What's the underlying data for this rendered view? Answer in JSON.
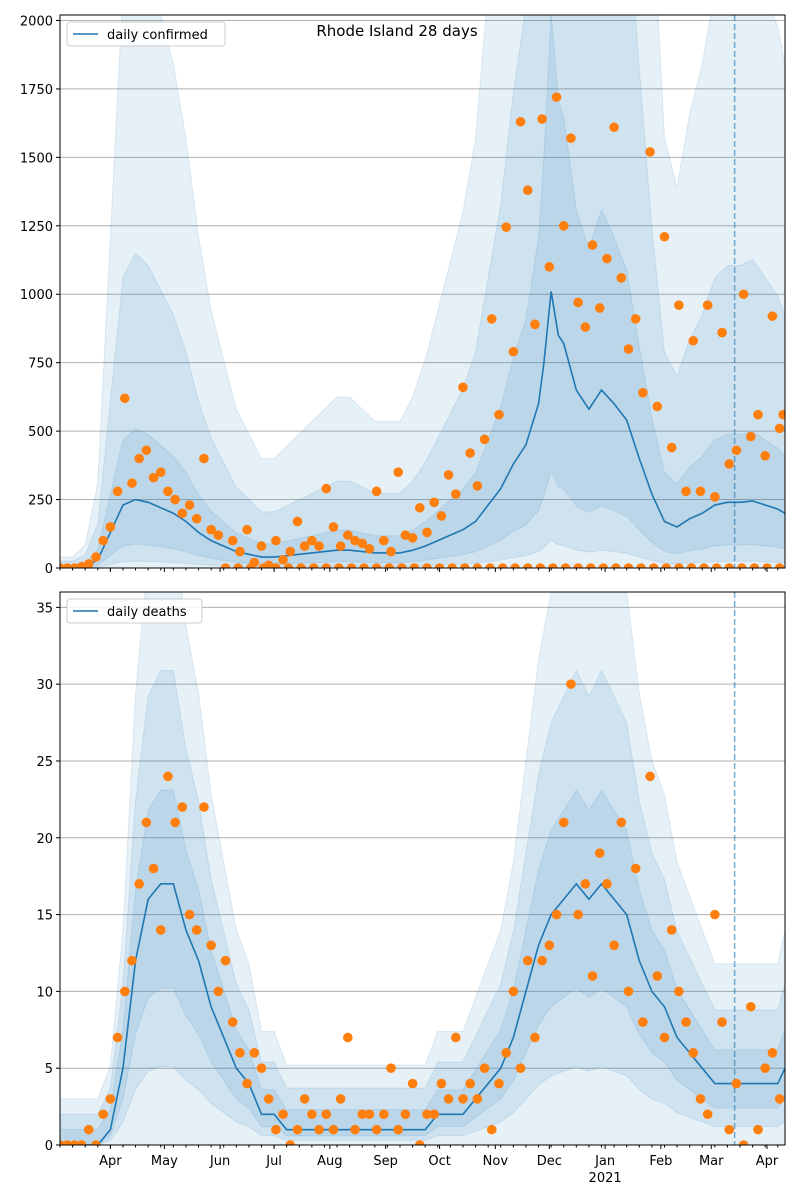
{
  "chart_data": [
    {
      "type": "scatter+line",
      "title": "Rhode Island 28 days",
      "legend": "daily confirmed",
      "legend_placement": "top-left",
      "ylim": [
        0,
        2020
      ],
      "yticks": [
        0,
        250,
        500,
        750,
        1000,
        1250,
        1500,
        1750,
        2000
      ],
      "grid": "horizontal",
      "line_days": [
        0,
        7,
        14,
        21,
        28,
        35,
        42,
        49,
        56,
        63,
        70,
        77,
        84,
        91,
        98,
        105,
        112,
        119,
        126,
        133,
        140,
        147,
        154,
        161,
        168,
        175,
        182,
        189,
        196,
        203,
        210,
        217,
        224,
        231,
        238,
        245,
        252,
        259,
        266,
        269,
        273,
        277,
        280,
        287,
        294,
        301,
        308,
        315,
        322,
        329,
        336,
        343,
        350,
        357,
        364,
        371,
        378,
        385,
        392,
        399,
        403
      ],
      "line_values": [
        0,
        0,
        5,
        30,
        130,
        230,
        250,
        240,
        220,
        200,
        170,
        130,
        100,
        80,
        60,
        50,
        40,
        40,
        45,
        50,
        55,
        60,
        65,
        65,
        60,
        55,
        55,
        55,
        65,
        80,
        100,
        120,
        140,
        170,
        230,
        290,
        380,
        450,
        600,
        750,
        1010,
        850,
        820,
        650,
        580,
        650,
        600,
        540,
        400,
        270,
        170,
        150,
        180,
        200,
        230,
        240,
        240,
        245,
        230,
        215,
        200
      ],
      "band_factors": [
        [
          0.0,
          9.0,
          40
        ],
        [
          0.1,
          4.5,
          25
        ],
        [
          0.35,
          2.0,
          8
        ]
      ],
      "points": [
        [
          0,
          0
        ],
        [
          4,
          0
        ],
        [
          8,
          0
        ],
        [
          12,
          5
        ],
        [
          16,
          15
        ],
        [
          20,
          40
        ],
        [
          24,
          100
        ],
        [
          28,
          150
        ],
        [
          32,
          280
        ],
        [
          36,
          620
        ],
        [
          40,
          310
        ],
        [
          44,
          400
        ],
        [
          48,
          430
        ],
        [
          52,
          330
        ],
        [
          56,
          350
        ],
        [
          60,
          280
        ],
        [
          64,
          250
        ],
        [
          68,
          200
        ],
        [
          72,
          230
        ],
        [
          76,
          180
        ],
        [
          80,
          400
        ],
        [
          84,
          140
        ],
        [
          88,
          120
        ],
        [
          92,
          0
        ],
        [
          96,
          100
        ],
        [
          100,
          60
        ],
        [
          104,
          140
        ],
        [
          108,
          20
        ],
        [
          112,
          80
        ],
        [
          116,
          10
        ],
        [
          120,
          100
        ],
        [
          124,
          30
        ],
        [
          128,
          60
        ],
        [
          132,
          170
        ],
        [
          136,
          80
        ],
        [
          140,
          100
        ],
        [
          144,
          80
        ],
        [
          148,
          290
        ],
        [
          152,
          150
        ],
        [
          156,
          80
        ],
        [
          160,
          120
        ],
        [
          164,
          100
        ],
        [
          168,
          90
        ],
        [
          172,
          70
        ],
        [
          176,
          280
        ],
        [
          180,
          100
        ],
        [
          184,
          60
        ],
        [
          188,
          350
        ],
        [
          192,
          120
        ],
        [
          196,
          110
        ],
        [
          200,
          220
        ],
        [
          204,
          130
        ],
        [
          208,
          240
        ],
        [
          212,
          190
        ],
        [
          216,
          340
        ],
        [
          220,
          270
        ],
        [
          224,
          660
        ],
        [
          228,
          420
        ],
        [
          232,
          300
        ],
        [
          236,
          470
        ],
        [
          240,
          910
        ],
        [
          244,
          560
        ],
        [
          248,
          1245
        ],
        [
          252,
          790
        ],
        [
          256,
          1630
        ],
        [
          260,
          1380
        ],
        [
          264,
          890
        ],
        [
          268,
          1640
        ],
        [
          272,
          1100
        ],
        [
          276,
          1720
        ],
        [
          280,
          1250
        ],
        [
          284,
          1570
        ],
        [
          288,
          970
        ],
        [
          292,
          880
        ],
        [
          296,
          1180
        ],
        [
          300,
          950
        ],
        [
          304,
          1130
        ],
        [
          308,
          1610
        ],
        [
          312,
          1060
        ],
        [
          316,
          800
        ],
        [
          320,
          910
        ],
        [
          324,
          640
        ],
        [
          328,
          1520
        ],
        [
          332,
          590
        ],
        [
          336,
          1210
        ],
        [
          340,
          440
        ],
        [
          344,
          960
        ],
        [
          348,
          280
        ],
        [
          352,
          830
        ],
        [
          356,
          280
        ],
        [
          360,
          960
        ],
        [
          364,
          260
        ],
        [
          368,
          860
        ],
        [
          372,
          380
        ],
        [
          376,
          430
        ],
        [
          380,
          1000
        ],
        [
          384,
          480
        ],
        [
          388,
          560
        ],
        [
          392,
          410
        ],
        [
          396,
          920
        ],
        [
          400,
          510
        ],
        [
          402,
          560
        ],
        [
          99,
          0
        ],
        [
          106,
          0
        ],
        [
          113,
          0
        ],
        [
          120,
          0
        ],
        [
          127,
          0
        ],
        [
          134,
          0
        ],
        [
          141,
          0
        ],
        [
          148,
          0
        ],
        [
          155,
          0
        ],
        [
          162,
          0
        ],
        [
          169,
          0
        ],
        [
          176,
          0
        ],
        [
          183,
          0
        ],
        [
          190,
          0
        ],
        [
          197,
          0
        ],
        [
          204,
          0
        ],
        [
          211,
          0
        ],
        [
          218,
          0
        ],
        [
          225,
          0
        ],
        [
          232,
          0
        ],
        [
          239,
          0
        ],
        [
          246,
          0
        ],
        [
          253,
          0
        ],
        [
          260,
          0
        ],
        [
          267,
          0
        ],
        [
          274,
          0
        ],
        [
          281,
          0
        ],
        [
          288,
          0
        ],
        [
          295,
          0
        ],
        [
          302,
          0
        ],
        [
          309,
          0
        ],
        [
          316,
          0
        ],
        [
          323,
          0
        ],
        [
          330,
          0
        ],
        [
          337,
          0
        ],
        [
          344,
          0
        ],
        [
          351,
          0
        ],
        [
          358,
          0
        ],
        [
          365,
          0
        ],
        [
          372,
          0
        ],
        [
          379,
          0
        ],
        [
          386,
          0
        ],
        [
          393,
          0
        ],
        [
          400,
          0
        ]
      ]
    },
    {
      "type": "scatter+line",
      "legend": "daily deaths",
      "legend_placement": "top-left",
      "ylim": [
        0,
        36
      ],
      "yticks": [
        0,
        5,
        10,
        15,
        20,
        25,
        30,
        35
      ],
      "grid": "horizontal",
      "line_days": [
        0,
        7,
        14,
        21,
        28,
        35,
        42,
        49,
        56,
        63,
        70,
        77,
        84,
        91,
        98,
        105,
        112,
        119,
        126,
        133,
        140,
        147,
        154,
        161,
        168,
        175,
        182,
        189,
        196,
        203,
        210,
        217,
        224,
        231,
        238,
        245,
        252,
        259,
        266,
        273,
        280,
        287,
        294,
        301,
        308,
        315,
        322,
        329,
        336,
        343,
        350,
        357,
        364,
        371,
        378,
        385,
        392,
        399,
        403
      ],
      "line_values": [
        0,
        0,
        0,
        0,
        1,
        5,
        12,
        16,
        17,
        17,
        14,
        12,
        9,
        7,
        5,
        4,
        2,
        2,
        1,
        1,
        1,
        1,
        1,
        1,
        1,
        1,
        1,
        1,
        1,
        1,
        2,
        2,
        2,
        3,
        4,
        5,
        7,
        10,
        13,
        15,
        16,
        17,
        16,
        17,
        16,
        15,
        12,
        10,
        9,
        7,
        6,
        5,
        4,
        4,
        4,
        4,
        4,
        4,
        5
      ],
      "band_factors": [
        [
          0.0,
          2.2,
          3
        ],
        [
          0.3,
          1.7,
          2
        ],
        [
          0.6,
          1.3,
          1
        ]
      ],
      "points": [
        [
          0,
          0
        ],
        [
          4,
          0
        ],
        [
          8,
          0
        ],
        [
          12,
          0
        ],
        [
          16,
          1
        ],
        [
          20,
          0
        ],
        [
          24,
          2
        ],
        [
          28,
          3
        ],
        [
          32,
          7
        ],
        [
          36,
          10
        ],
        [
          40,
          12
        ],
        [
          44,
          17
        ],
        [
          48,
          21
        ],
        [
          52,
          18
        ],
        [
          56,
          14
        ],
        [
          60,
          24
        ],
        [
          64,
          21
        ],
        [
          68,
          22
        ],
        [
          72,
          15
        ],
        [
          76,
          14
        ],
        [
          80,
          22
        ],
        [
          84,
          13
        ],
        [
          88,
          10
        ],
        [
          92,
          12
        ],
        [
          96,
          8
        ],
        [
          100,
          6
        ],
        [
          104,
          4
        ],
        [
          108,
          6
        ],
        [
          112,
          5
        ],
        [
          116,
          3
        ],
        [
          120,
          1
        ],
        [
          124,
          2
        ],
        [
          128,
          0
        ],
        [
          132,
          1
        ],
        [
          136,
          3
        ],
        [
          140,
          2
        ],
        [
          144,
          1
        ],
        [
          148,
          2
        ],
        [
          152,
          1
        ],
        [
          156,
          3
        ],
        [
          160,
          7
        ],
        [
          164,
          1
        ],
        [
          168,
          2
        ],
        [
          172,
          2
        ],
        [
          176,
          1
        ],
        [
          180,
          2
        ],
        [
          184,
          5
        ],
        [
          188,
          1
        ],
        [
          192,
          2
        ],
        [
          196,
          4
        ],
        [
          200,
          0
        ],
        [
          204,
          2
        ],
        [
          208,
          2
        ],
        [
          212,
          4
        ],
        [
          216,
          3
        ],
        [
          220,
          7
        ],
        [
          224,
          3
        ],
        [
          228,
          4
        ],
        [
          232,
          3
        ],
        [
          236,
          5
        ],
        [
          240,
          1
        ],
        [
          244,
          4
        ],
        [
          248,
          6
        ],
        [
          252,
          10
        ],
        [
          256,
          5
        ],
        [
          260,
          12
        ],
        [
          264,
          7
        ],
        [
          268,
          12
        ],
        [
          272,
          13
        ],
        [
          276,
          15
        ],
        [
          280,
          21
        ],
        [
          284,
          30
        ],
        [
          288,
          15
        ],
        [
          292,
          17
        ],
        [
          296,
          11
        ],
        [
          300,
          19
        ],
        [
          304,
          17
        ],
        [
          308,
          13
        ],
        [
          312,
          21
        ],
        [
          316,
          10
        ],
        [
          320,
          18
        ],
        [
          324,
          8
        ],
        [
          328,
          24
        ],
        [
          332,
          11
        ],
        [
          336,
          7
        ],
        [
          340,
          14
        ],
        [
          344,
          10
        ],
        [
          348,
          8
        ],
        [
          352,
          6
        ],
        [
          356,
          3
        ],
        [
          360,
          2
        ],
        [
          364,
          15
        ],
        [
          368,
          8
        ],
        [
          372,
          1
        ],
        [
          376,
          4
        ],
        [
          380,
          0
        ],
        [
          384,
          9
        ],
        [
          388,
          1
        ],
        [
          392,
          5
        ],
        [
          396,
          6
        ],
        [
          400,
          3
        ]
      ]
    }
  ],
  "x_axis": {
    "day_range": [
      0,
      403
    ],
    "marker_day": 375,
    "month_ticks": [
      {
        "day": 28,
        "label": "Apr"
      },
      {
        "day": 58,
        "label": "May"
      },
      {
        "day": 89,
        "label": "Jun"
      },
      {
        "day": 119,
        "label": "Jul"
      },
      {
        "day": 150,
        "label": "Aug"
      },
      {
        "day": 181,
        "label": "Sep"
      },
      {
        "day": 211,
        "label": "Oct"
      },
      {
        "day": 242,
        "label": "Nov"
      },
      {
        "day": 272,
        "label": "Dec"
      },
      {
        "day": 303,
        "label": "Jan"
      },
      {
        "day": 334,
        "label": "Feb"
      },
      {
        "day": 362,
        "label": "Mar"
      },
      {
        "day": 393,
        "label": "Apr"
      }
    ],
    "year_label": "2021",
    "year_day": 303
  },
  "colors": {
    "line": "#1f77b4",
    "points": "#ff7f0e",
    "band": "#1f77b4",
    "grid": "#b0b0b0"
  }
}
